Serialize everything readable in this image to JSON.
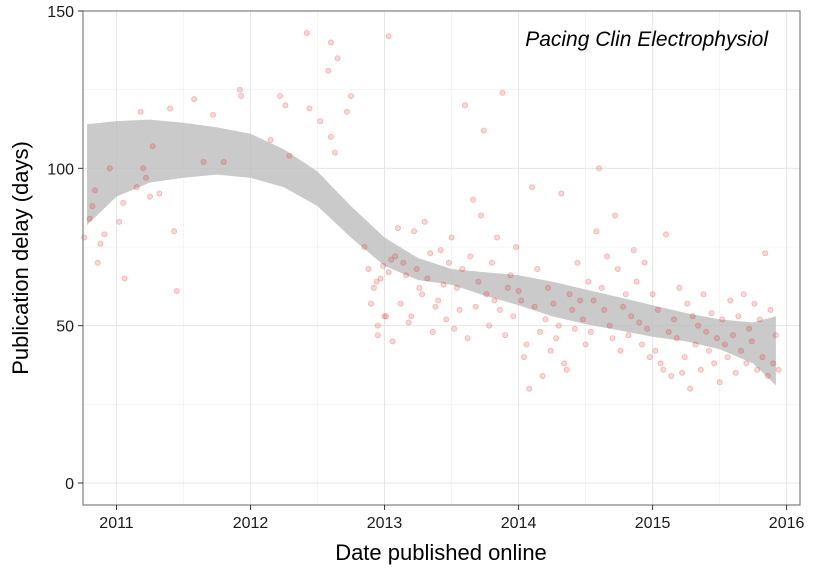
{
  "chart_data": {
    "type": "scatter",
    "title": "",
    "annotation": "Pacing Clin Electrophysiol",
    "xlabel": "Date published online",
    "ylabel": "Publication delay (days)",
    "xlim": [
      2010.75,
      2016.1
    ],
    "ylim": [
      -7,
      150
    ],
    "x_ticks": [
      2011,
      2012,
      2013,
      2014,
      2015,
      2016
    ],
    "x_tick_labels": [
      "2011",
      "2012",
      "2013",
      "2014",
      "2015",
      "2016"
    ],
    "y_ticks": [
      0,
      50,
      100,
      150
    ],
    "y_tick_labels": [
      "0",
      "50",
      "100",
      "150"
    ],
    "grid": true,
    "point_color": "#e41a1c",
    "point_opacity": 0.18,
    "band_color": "#bdbdbd",
    "smooth": {
      "x": [
        2010.78,
        2011.0,
        2011.25,
        2011.5,
        2011.75,
        2012.0,
        2012.25,
        2012.5,
        2012.75,
        2013.0,
        2013.25,
        2013.5,
        2013.75,
        2014.0,
        2014.25,
        2014.5,
        2014.75,
        2015.0,
        2015.25,
        2015.5,
        2015.75,
        2015.92
      ],
      "lower": [
        82,
        91,
        95.5,
        97,
        98,
        97,
        94,
        88,
        78,
        69,
        64.5,
        63,
        59.5,
        56.5,
        53,
        50.5,
        48.5,
        46.5,
        45,
        42.5,
        38,
        31
      ],
      "upper": [
        114,
        115,
        115.5,
        114.5,
        113,
        111,
        106,
        99,
        88,
        78,
        71.5,
        68,
        67,
        66,
        64,
        61.5,
        59,
        56.5,
        54,
        52,
        51,
        53
      ]
    },
    "points": [
      [
        2010.76,
        78
      ],
      [
        2010.8,
        84
      ],
      [
        2010.82,
        88
      ],
      [
        2010.84,
        93
      ],
      [
        2010.86,
        70
      ],
      [
        2010.88,
        76
      ],
      [
        2010.91,
        79
      ],
      [
        2010.95,
        100
      ],
      [
        2011.02,
        83
      ],
      [
        2011.05,
        89
      ],
      [
        2011.06,
        65
      ],
      [
        2011.15,
        94
      ],
      [
        2011.18,
        118
      ],
      [
        2011.2,
        100
      ],
      [
        2011.22,
        97
      ],
      [
        2011.25,
        91
      ],
      [
        2011.27,
        107
      ],
      [
        2011.32,
        92
      ],
      [
        2011.4,
        119
      ],
      [
        2011.43,
        80
      ],
      [
        2011.45,
        61
      ],
      [
        2011.58,
        122
      ],
      [
        2011.65,
        102
      ],
      [
        2011.72,
        117
      ],
      [
        2011.8,
        102
      ],
      [
        2011.92,
        125
      ],
      [
        2011.93,
        123
      ],
      [
        2012.15,
        109
      ],
      [
        2012.22,
        123
      ],
      [
        2012.26,
        120
      ],
      [
        2012.29,
        104
      ],
      [
        2012.42,
        143
      ],
      [
        2012.44,
        119
      ],
      [
        2012.52,
        115
      ],
      [
        2012.58,
        131
      ],
      [
        2012.6,
        140
      ],
      [
        2012.6,
        110
      ],
      [
        2012.63,
        105
      ],
      [
        2012.65,
        135
      ],
      [
        2012.72,
        118
      ],
      [
        2012.75,
        123
      ],
      [
        2012.85,
        75
      ],
      [
        2012.88,
        68
      ],
      [
        2012.9,
        57
      ],
      [
        2012.92,
        62
      ],
      [
        2012.94,
        64
      ],
      [
        2012.95,
        50
      ],
      [
        2012.95,
        47
      ],
      [
        2012.97,
        65
      ],
      [
        2012.99,
        69
      ],
      [
        2013.0,
        53
      ],
      [
        2013.01,
        53
      ],
      [
        2013.03,
        67
      ],
      [
        2013.03,
        142
      ],
      [
        2013.05,
        71
      ],
      [
        2013.06,
        45
      ],
      [
        2013.08,
        72
      ],
      [
        2013.1,
        81
      ],
      [
        2013.12,
        57
      ],
      [
        2013.14,
        70
      ],
      [
        2013.16,
        66
      ],
      [
        2013.18,
        51
      ],
      [
        2013.2,
        53
      ],
      [
        2013.22,
        80
      ],
      [
        2013.24,
        68
      ],
      [
        2013.26,
        62
      ],
      [
        2013.28,
        60
      ],
      [
        2013.3,
        83
      ],
      [
        2013.32,
        65
      ],
      [
        2013.34,
        73
      ],
      [
        2013.36,
        48
      ],
      [
        2013.38,
        56
      ],
      [
        2013.4,
        58
      ],
      [
        2013.42,
        74
      ],
      [
        2013.44,
        63
      ],
      [
        2013.46,
        52
      ],
      [
        2013.48,
        70
      ],
      [
        2013.5,
        78
      ],
      [
        2013.52,
        49
      ],
      [
        2013.54,
        62
      ],
      [
        2013.56,
        55
      ],
      [
        2013.58,
        68
      ],
      [
        2013.6,
        120
      ],
      [
        2013.62,
        46
      ],
      [
        2013.64,
        72
      ],
      [
        2013.66,
        90
      ],
      [
        2013.68,
        56
      ],
      [
        2013.7,
        64
      ],
      [
        2013.72,
        85
      ],
      [
        2013.74,
        112
      ],
      [
        2013.76,
        60
      ],
      [
        2013.78,
        50
      ],
      [
        2013.8,
        70
      ],
      [
        2013.82,
        58
      ],
      [
        2013.84,
        78
      ],
      [
        2013.86,
        55
      ],
      [
        2013.88,
        124
      ],
      [
        2013.9,
        47
      ],
      [
        2013.92,
        62
      ],
      [
        2013.94,
        66
      ],
      [
        2013.96,
        53
      ],
      [
        2013.98,
        75
      ],
      [
        2014.0,
        61
      ],
      [
        2014.02,
        58
      ],
      [
        2014.04,
        40
      ],
      [
        2014.06,
        44
      ],
      [
        2014.08,
        30
      ],
      [
        2014.1,
        94
      ],
      [
        2014.12,
        56
      ],
      [
        2014.14,
        68
      ],
      [
        2014.16,
        48
      ],
      [
        2014.18,
        34
      ],
      [
        2014.2,
        52
      ],
      [
        2014.22,
        62
      ],
      [
        2014.24,
        42
      ],
      [
        2014.26,
        57
      ],
      [
        2014.28,
        46
      ],
      [
        2014.3,
        50
      ],
      [
        2014.32,
        92
      ],
      [
        2014.34,
        38
      ],
      [
        2014.36,
        36
      ],
      [
        2014.38,
        60
      ],
      [
        2014.4,
        55
      ],
      [
        2014.42,
        49
      ],
      [
        2014.44,
        70
      ],
      [
        2014.46,
        58
      ],
      [
        2014.48,
        52
      ],
      [
        2014.5,
        44
      ],
      [
        2014.52,
        64
      ],
      [
        2014.54,
        48
      ],
      [
        2014.56,
        58
      ],
      [
        2014.58,
        80
      ],
      [
        2014.6,
        100
      ],
      [
        2014.62,
        62
      ],
      [
        2014.64,
        55
      ],
      [
        2014.66,
        72
      ],
      [
        2014.68,
        50
      ],
      [
        2014.7,
        46
      ],
      [
        2014.72,
        85
      ],
      [
        2014.74,
        68
      ],
      [
        2014.76,
        42
      ],
      [
        2014.78,
        56
      ],
      [
        2014.8,
        60
      ],
      [
        2014.82,
        47
      ],
      [
        2014.84,
        53
      ],
      [
        2014.86,
        74
      ],
      [
        2014.88,
        64
      ],
      [
        2014.9,
        51
      ],
      [
        2014.92,
        44
      ],
      [
        2014.94,
        70
      ],
      [
        2014.96,
        49
      ],
      [
        2014.98,
        40
      ],
      [
        2015.0,
        60
      ],
      [
        2015.02,
        42
      ],
      [
        2015.04,
        55
      ],
      [
        2015.06,
        38
      ],
      [
        2015.08,
        36
      ],
      [
        2015.1,
        79
      ],
      [
        2015.12,
        48
      ],
      [
        2015.14,
        34
      ],
      [
        2015.16,
        52
      ],
      [
        2015.18,
        46
      ],
      [
        2015.2,
        62
      ],
      [
        2015.22,
        35
      ],
      [
        2015.24,
        40
      ],
      [
        2015.26,
        57
      ],
      [
        2015.28,
        30
      ],
      [
        2015.3,
        53
      ],
      [
        2015.32,
        44
      ],
      [
        2015.34,
        50
      ],
      [
        2015.36,
        36
      ],
      [
        2015.38,
        60
      ],
      [
        2015.4,
        48
      ],
      [
        2015.42,
        42
      ],
      [
        2015.44,
        54
      ],
      [
        2015.46,
        38
      ],
      [
        2015.48,
        46
      ],
      [
        2015.5,
        32
      ],
      [
        2015.52,
        52
      ],
      [
        2015.54,
        44
      ],
      [
        2015.56,
        40
      ],
      [
        2015.58,
        58
      ],
      [
        2015.6,
        47
      ],
      [
        2015.62,
        35
      ],
      [
        2015.64,
        53
      ],
      [
        2015.66,
        42
      ],
      [
        2015.68,
        60
      ],
      [
        2015.7,
        38
      ],
      [
        2015.72,
        49
      ],
      [
        2015.74,
        45
      ],
      [
        2015.76,
        57
      ],
      [
        2015.78,
        36
      ],
      [
        2015.8,
        52
      ],
      [
        2015.82,
        40
      ],
      [
        2015.84,
        73
      ],
      [
        2015.86,
        34
      ],
      [
        2015.88,
        55
      ],
      [
        2015.9,
        38
      ],
      [
        2015.92,
        47
      ],
      [
        2015.94,
        36
      ]
    ]
  }
}
